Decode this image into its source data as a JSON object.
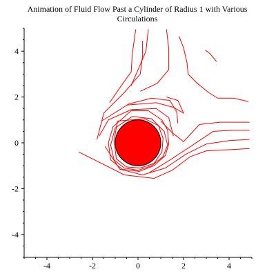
{
  "chart_data": {
    "type": "line",
    "title": "Animation of Fluid Flow Past a Cylinder of Radius 1 with Various Circulations",
    "title_lines": [
      "Animation of Fluid Flow Past a Cylinder of Radius 1 with Various",
      "Circulations"
    ],
    "xlabel": "",
    "ylabel": "",
    "xlim": [
      -5,
      5
    ],
    "ylim": [
      -5,
      5
    ],
    "x_ticks": [
      -4,
      -2,
      0,
      2,
      4
    ],
    "y_ticks": [
      -4,
      -2,
      0,
      2,
      4
    ],
    "grid": false,
    "legend": "none",
    "colors": {
      "streamline": "#ff0000",
      "cylinder_fill": "#ff0000",
      "cylinder_edge": "#000000",
      "axes": "#000000"
    },
    "cylinder": {
      "cx": 0,
      "cy": 0,
      "r": 1
    },
    "streamlines": [
      {
        "points": [
          [
            -0.1,
            0.7
          ],
          [
            0.55,
            0.75
          ],
          [
            0.9,
            0.35
          ],
          [
            0.95,
            -0.15
          ],
          [
            0.7,
            -0.6
          ],
          [
            0.2,
            -0.95
          ],
          [
            -0.3,
            -0.95
          ],
          [
            -0.8,
            -0.6
          ],
          [
            -0.95,
            0.0
          ],
          [
            -0.7,
            0.55
          ],
          [
            -0.1,
            0.7
          ]
        ]
      },
      {
        "points": [
          [
            -0.9,
            0.95
          ],
          [
            0.3,
            1.05
          ],
          [
            0.9,
            0.75
          ],
          [
            1.1,
            0.2
          ],
          [
            1.05,
            -0.4
          ],
          [
            0.7,
            -0.9
          ],
          [
            0.1,
            -1.1
          ],
          [
            -0.5,
            -1.05
          ],
          [
            -0.95,
            -0.7
          ],
          [
            -1.05,
            0.1
          ],
          [
            -0.9,
            0.95
          ]
        ]
      },
      {
        "points": [
          [
            -0.25,
            1.15
          ],
          [
            0.6,
            1.05
          ],
          [
            1.15,
            0.5
          ],
          [
            1.3,
            -0.1
          ],
          [
            1.1,
            -0.6
          ],
          [
            0.6,
            -1.0
          ],
          [
            0.0,
            -1.2
          ],
          [
            -0.6,
            -1.1
          ],
          [
            -1.05,
            -0.75
          ],
          [
            -1.2,
            -0.1
          ],
          [
            -1.0,
            0.65
          ],
          [
            -0.25,
            1.15
          ]
        ]
      },
      {
        "points": [
          [
            -0.3,
            1.4
          ],
          [
            0.45,
            1.4
          ],
          [
            1.05,
            1.0
          ],
          [
            1.3,
            0.55
          ],
          [
            1.35,
            -0.05
          ],
          [
            1.2,
            -0.55
          ],
          [
            0.7,
            -1.0
          ],
          [
            0.05,
            -1.25
          ],
          [
            -0.7,
            -1.15
          ],
          [
            -1.2,
            -0.75
          ],
          [
            -1.3,
            0.0
          ],
          [
            -1.1,
            0.7
          ],
          [
            -0.3,
            1.4
          ]
        ]
      },
      {
        "points": [
          [
            -2.6,
            -0.4
          ],
          [
            -0.6,
            -1.4
          ],
          [
            0.7,
            -1.55
          ],
          [
            1.5,
            -1.2
          ],
          [
            2.3,
            -0.6
          ],
          [
            3.0,
            -0.35
          ],
          [
            4.0,
            -0.3
          ],
          [
            4.9,
            -0.25
          ]
        ]
      },
      {
        "points": [
          [
            -1.45,
            -0.15
          ],
          [
            -0.8,
            -1.15
          ],
          [
            0.2,
            -1.4
          ],
          [
            1.2,
            -1.1
          ],
          [
            2.1,
            -0.5
          ],
          [
            3.0,
            -0.05
          ],
          [
            4.0,
            0.1
          ],
          [
            4.9,
            0.15
          ]
        ]
      },
      {
        "points": [
          [
            0.5,
            -1.3
          ],
          [
            1.4,
            -0.75
          ],
          [
            2.4,
            -0.1
          ],
          [
            3.3,
            0.5
          ],
          [
            4.2,
            0.55
          ],
          [
            4.9,
            0.55
          ]
        ]
      },
      {
        "points": [
          [
            1.0,
            0.95
          ],
          [
            1.5,
            0.45
          ],
          [
            2.0,
            0.05
          ],
          [
            2.7,
            0.8
          ],
          [
            3.6,
            0.9
          ],
          [
            4.9,
            0.9
          ]
        ]
      },
      {
        "points": [
          [
            -1.7,
            0.3
          ],
          [
            -1.3,
            1.0
          ],
          [
            -0.3,
            1.45
          ],
          [
            0.8,
            1.5
          ],
          [
            1.35,
            1.1
          ],
          [
            1.55,
            0.3
          ]
        ]
      },
      {
        "points": [
          [
            -1.6,
            0.95
          ],
          [
            -0.4,
            1.7
          ],
          [
            0.6,
            1.95
          ],
          [
            1.4,
            1.85
          ],
          [
            1.7,
            1.35
          ],
          [
            1.75,
            0.85
          ]
        ]
      },
      {
        "points": [
          [
            -1.8,
            0.15
          ],
          [
            -1.5,
            1.3
          ],
          [
            -0.6,
            2.2
          ],
          [
            0.1,
            3.0
          ],
          [
            0.2,
            3.8
          ],
          [
            0.2,
            4.45
          ]
        ]
      },
      {
        "points": [
          [
            -1.25,
            1.75
          ],
          [
            -0.8,
            2.4
          ],
          [
            -0.3,
            3.1
          ],
          [
            -0.25,
            3.9
          ],
          [
            -0.1,
            4.95
          ]
        ]
      },
      {
        "points": [
          [
            -0.3,
            2.5
          ],
          [
            0.05,
            3.3
          ],
          [
            0.35,
            4.0
          ],
          [
            0.45,
            4.95
          ]
        ]
      },
      {
        "points": [
          [
            0.1,
            2.25
          ],
          [
            0.85,
            2.6
          ],
          [
            1.35,
            3.2
          ],
          [
            1.35,
            4.1
          ],
          [
            1.25,
            4.95
          ]
        ]
      },
      {
        "points": [
          [
            -0.5,
            1.65
          ],
          [
            0.8,
            1.75
          ],
          [
            1.55,
            1.55
          ],
          [
            2.0,
            1.3
          ],
          [
            1.75,
            1.85
          ],
          [
            1.25,
            2.0
          ]
        ]
      },
      {
        "points": [
          [
            1.8,
            4.65
          ],
          [
            2.0,
            4.15
          ],
          [
            2.15,
            3.5
          ],
          [
            2.2,
            3.0
          ],
          [
            2.6,
            2.6
          ],
          [
            3.1,
            2.2
          ],
          [
            3.5,
            1.95
          ],
          [
            4.2,
            1.95
          ],
          [
            4.85,
            1.8
          ]
        ]
      },
      {
        "points": [
          [
            2.95,
            4.05
          ],
          [
            3.15,
            3.9
          ],
          [
            3.45,
            3.55
          ]
        ]
      }
    ]
  }
}
